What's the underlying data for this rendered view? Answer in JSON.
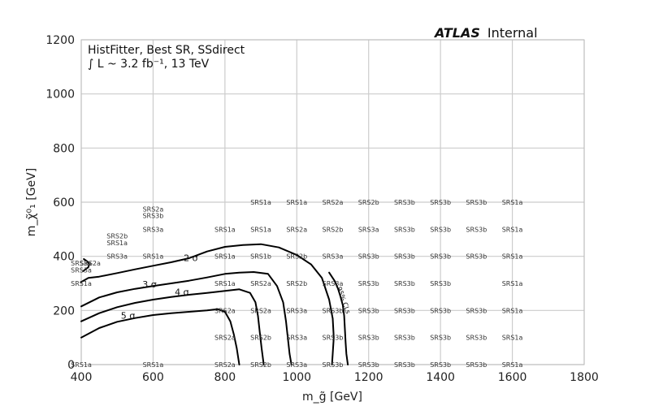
{
  "chart_data": {
    "type": "scatter",
    "experiment": "ATLAS",
    "experiment_status": "Internal",
    "annotation_lines": [
      "HistFitter, Best SR, SSdirect",
      "∫ L ~ 3.2 fb⁻¹, 13 TeV"
    ],
    "xlabel": "m_g̃ [GeV]",
    "ylabel": "m_χ̃⁰₁ [GeV]",
    "xlim": [
      400,
      1800
    ],
    "ylim": [
      0,
      1200
    ],
    "xticks": [
      400,
      600,
      800,
      1000,
      1200,
      1400,
      1600,
      1800
    ],
    "yticks": [
      0,
      200,
      400,
      600,
      800,
      1000,
      1200
    ],
    "grid": true,
    "grid_color": "#cccccc",
    "text_markers": [
      {
        "x": 400,
        "y": 0,
        "label": "SRS1a"
      },
      {
        "x": 400,
        "y": 300,
        "label": "SRS1a"
      },
      {
        "x": 400,
        "y": 350,
        "label": "SRS3a"
      },
      {
        "x": 400,
        "y": 375,
        "label": "SRS3a"
      },
      {
        "x": 425,
        "y": 375,
        "label": "SRS2a"
      },
      {
        "x": 500,
        "y": 400,
        "label": "SRS3a"
      },
      {
        "x": 500,
        "y": 450,
        "label": "SRS1a"
      },
      {
        "x": 500,
        "y": 475,
        "label": "SRS2b"
      },
      {
        "x": 600,
        "y": 0,
        "label": "SRS1a"
      },
      {
        "x": 600,
        "y": 400,
        "label": "SRS1a"
      },
      {
        "x": 600,
        "y": 500,
        "label": "SRS3a"
      },
      {
        "x": 600,
        "y": 550,
        "label": "SRS3b"
      },
      {
        "x": 600,
        "y": 575,
        "label": "SRS2a"
      },
      {
        "x": 800,
        "y": 0,
        "label": "SRS2a"
      },
      {
        "x": 800,
        "y": 100,
        "label": "SRS2a"
      },
      {
        "x": 800,
        "y": 200,
        "label": "SRS2a"
      },
      {
        "x": 800,
        "y": 300,
        "label": "SRS1a"
      },
      {
        "x": 800,
        "y": 400,
        "label": "SRS1a"
      },
      {
        "x": 800,
        "y": 500,
        "label": "SRS1a"
      },
      {
        "x": 900,
        "y": 0,
        "label": "SRS2b"
      },
      {
        "x": 900,
        "y": 100,
        "label": "SRS2b"
      },
      {
        "x": 900,
        "y": 200,
        "label": "SRS2a"
      },
      {
        "x": 900,
        "y": 300,
        "label": "SRS2a"
      },
      {
        "x": 900,
        "y": 400,
        "label": "SRS1b"
      },
      {
        "x": 900,
        "y": 500,
        "label": "SRS1a"
      },
      {
        "x": 900,
        "y": 600,
        "label": "SRS1a"
      },
      {
        "x": 1000,
        "y": 0,
        "label": "SRS3a"
      },
      {
        "x": 1000,
        "y": 100,
        "label": "SRS3a"
      },
      {
        "x": 1000,
        "y": 200,
        "label": "SRS3a"
      },
      {
        "x": 1000,
        "y": 300,
        "label": "SRS2b"
      },
      {
        "x": 1000,
        "y": 400,
        "label": "SRS2b"
      },
      {
        "x": 1000,
        "y": 500,
        "label": "SRS2a"
      },
      {
        "x": 1000,
        "y": 600,
        "label": "SRS1a"
      },
      {
        "x": 1100,
        "y": 0,
        "label": "SRS3b"
      },
      {
        "x": 1100,
        "y": 100,
        "label": "SRS3b"
      },
      {
        "x": 1100,
        "y": 200,
        "label": "SRS3b"
      },
      {
        "x": 1100,
        "y": 300,
        "label": "SRS3a"
      },
      {
        "x": 1100,
        "y": 400,
        "label": "SRS3a"
      },
      {
        "x": 1100,
        "y": 500,
        "label": "SRS2b"
      },
      {
        "x": 1100,
        "y": 600,
        "label": "SRS2a"
      },
      {
        "x": 1200,
        "y": 0,
        "label": "SRS3b"
      },
      {
        "x": 1200,
        "y": 100,
        "label": "SRS3b"
      },
      {
        "x": 1200,
        "y": 200,
        "label": "SRS3b"
      },
      {
        "x": 1200,
        "y": 300,
        "label": "SRS3b"
      },
      {
        "x": 1200,
        "y": 400,
        "label": "SRS3b"
      },
      {
        "x": 1200,
        "y": 500,
        "label": "SRS3a"
      },
      {
        "x": 1200,
        "y": 600,
        "label": "SRS2b"
      },
      {
        "x": 1300,
        "y": 0,
        "label": "SRS3b"
      },
      {
        "x": 1300,
        "y": 100,
        "label": "SRS3b"
      },
      {
        "x": 1300,
        "y": 200,
        "label": "SRS3b"
      },
      {
        "x": 1300,
        "y": 300,
        "label": "SRS3b"
      },
      {
        "x": 1300,
        "y": 400,
        "label": "SRS3b"
      },
      {
        "x": 1300,
        "y": 500,
        "label": "SRS3b"
      },
      {
        "x": 1300,
        "y": 600,
        "label": "SRS3b"
      },
      {
        "x": 1400,
        "y": 0,
        "label": "SRS3b"
      },
      {
        "x": 1400,
        "y": 100,
        "label": "SRS3b"
      },
      {
        "x": 1400,
        "y": 200,
        "label": "SRS3b"
      },
      {
        "x": 1400,
        "y": 300,
        "label": "SRS3b"
      },
      {
        "x": 1400,
        "y": 400,
        "label": "SRS3b"
      },
      {
        "x": 1400,
        "y": 500,
        "label": "SRS3b"
      },
      {
        "x": 1400,
        "y": 600,
        "label": "SRS3b"
      },
      {
        "x": 1500,
        "y": 0,
        "label": "SRS3b"
      },
      {
        "x": 1500,
        "y": 100,
        "label": "SRS3b"
      },
      {
        "x": 1500,
        "y": 200,
        "label": "SRS3b"
      },
      {
        "x": 1500,
        "y": 400,
        "label": "SRS3b"
      },
      {
        "x": 1500,
        "y": 500,
        "label": "SRS3b"
      },
      {
        "x": 1500,
        "y": 600,
        "label": "SRS3b"
      },
      {
        "x": 1600,
        "y": 0,
        "label": "SRS1a"
      },
      {
        "x": 1600,
        "y": 100,
        "label": "SRS1a"
      },
      {
        "x": 1600,
        "y": 200,
        "label": "SRS1a"
      },
      {
        "x": 1600,
        "y": 300,
        "label": "SRS1a"
      },
      {
        "x": 1600,
        "y": 400,
        "label": "SRS1a"
      },
      {
        "x": 1600,
        "y": 500,
        "label": "SRS1a"
      },
      {
        "x": 1600,
        "y": 600,
        "label": "SRS1a"
      }
    ],
    "contours": [
      {
        "name": "5 σ",
        "label": "5 σ",
        "label_at": [
          530,
          170
        ],
        "points": [
          [
            400,
            100
          ],
          [
            450,
            135
          ],
          [
            500,
            158
          ],
          [
            550,
            172
          ],
          [
            600,
            183
          ],
          [
            650,
            190
          ],
          [
            700,
            195
          ],
          [
            750,
            200
          ],
          [
            780,
            205
          ],
          [
            800,
            195
          ],
          [
            815,
            160
          ],
          [
            825,
            110
          ],
          [
            833,
            60
          ],
          [
            840,
            0
          ]
        ]
      },
      {
        "name": "4 σ",
        "label": "4 σ",
        "label_at": [
          680,
          257
        ],
        "points": [
          [
            400,
            160
          ],
          [
            450,
            190
          ],
          [
            500,
            212
          ],
          [
            550,
            228
          ],
          [
            600,
            240
          ],
          [
            650,
            250
          ],
          [
            700,
            258
          ],
          [
            750,
            265
          ],
          [
            800,
            272
          ],
          [
            840,
            278
          ],
          [
            870,
            265
          ],
          [
            885,
            230
          ],
          [
            892,
            180
          ],
          [
            897,
            120
          ],
          [
            902,
            60
          ],
          [
            908,
            0
          ]
        ]
      },
      {
        "name": "3 σ",
        "label": "3 σ",
        "label_at": [
          590,
          285
        ],
        "points": [
          [
            400,
            215
          ],
          [
            450,
            248
          ],
          [
            500,
            267
          ],
          [
            550,
            280
          ],
          [
            600,
            290
          ],
          [
            650,
            300
          ],
          [
            700,
            310
          ],
          [
            750,
            322
          ],
          [
            800,
            335
          ],
          [
            840,
            340
          ],
          [
            880,
            342
          ],
          [
            920,
            335
          ],
          [
            945,
            290
          ],
          [
            962,
            230
          ],
          [
            970,
            160
          ],
          [
            975,
            100
          ],
          [
            980,
            40
          ],
          [
            985,
            0
          ]
        ]
      },
      {
        "name": "2 σ",
        "label": "2 σ",
        "label_at": [
          705,
          382
        ],
        "points": [
          [
            400,
            305
          ],
          [
            420,
            320
          ],
          [
            450,
            325
          ],
          [
            500,
            338
          ],
          [
            550,
            352
          ],
          [
            600,
            365
          ],
          [
            650,
            378
          ],
          [
            700,
            393
          ],
          [
            750,
            418
          ],
          [
            800,
            435
          ],
          [
            850,
            442
          ],
          [
            900,
            445
          ],
          [
            950,
            433
          ],
          [
            1000,
            405
          ],
          [
            1040,
            370
          ],
          [
            1070,
            320
          ],
          [
            1090,
            240
          ],
          [
            1100,
            170
          ],
          [
            1103,
            100
          ],
          [
            1100,
            40
          ],
          [
            1098,
            0
          ]
        ]
      },
      {
        "name": "95% CLs",
        "label": "95% CLs",
        "label_at": [
          1125,
          235
        ],
        "points": [
          [
            1090,
            340
          ],
          [
            1105,
            310
          ],
          [
            1115,
            280
          ],
          [
            1122,
            250
          ],
          [
            1128,
            220
          ],
          [
            1132,
            180
          ],
          [
            1134,
            130
          ],
          [
            1136,
            80
          ],
          [
            1138,
            40
          ],
          [
            1142,
            0
          ]
        ]
      },
      {
        "name": "hook",
        "points": [
          [
            407,
            390
          ],
          [
            418,
            380
          ],
          [
            422,
            370
          ],
          [
            420,
            360
          ],
          [
            412,
            352
          ],
          [
            405,
            345
          ]
        ]
      }
    ]
  }
}
